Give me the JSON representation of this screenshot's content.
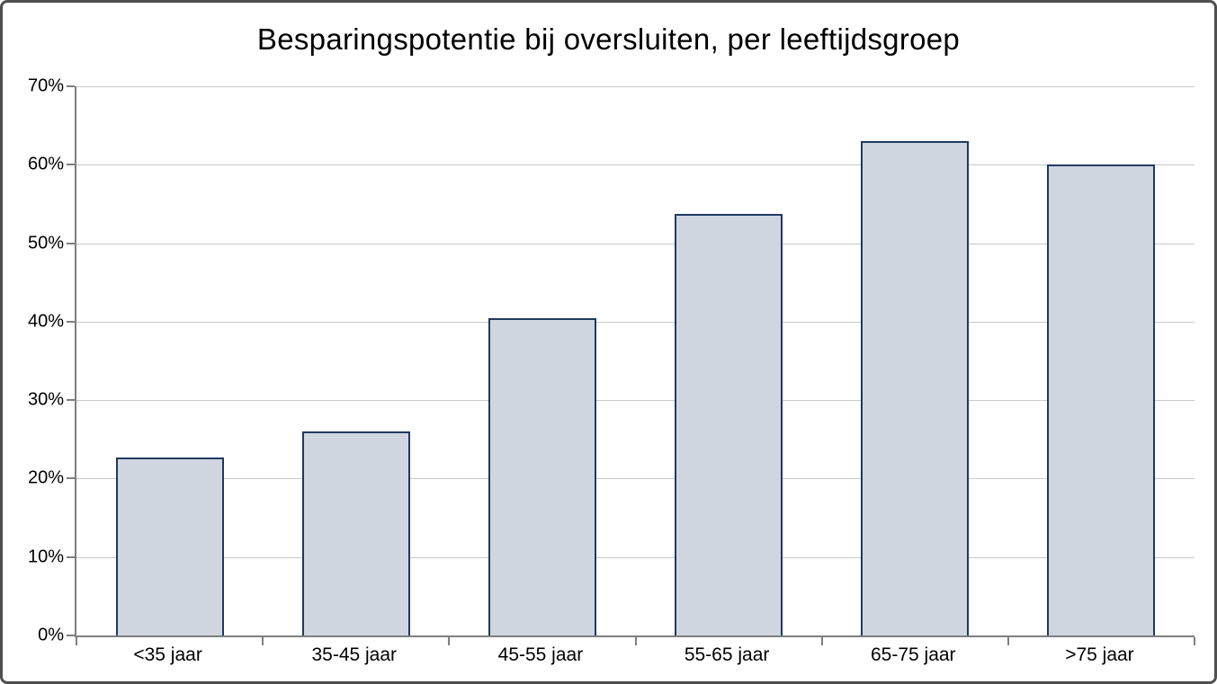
{
  "chart_data": {
    "type": "bar",
    "title": "Besparingspotentie bij oversluiten, per leeftijdsgroep",
    "categories": [
      "<35 jaar",
      "35-45 jaar",
      "45-55 jaar",
      "55-65 jaar",
      "65-75 jaar",
      ">75 jaar"
    ],
    "values": [
      22.7,
      26,
      40.5,
      53.7,
      63,
      60
    ],
    "xlabel": "",
    "ylabel": "",
    "ylim": [
      0,
      70
    ],
    "ytick_step": 10,
    "ytick_labels": [
      "0%",
      "10%",
      "20%",
      "30%",
      "40%",
      "50%",
      "60%",
      "70%"
    ],
    "grid": true,
    "legend": false,
    "colors": {
      "bar_fill": "#cfd6e0",
      "bar_border": "#1f3a5f",
      "gridline": "#c9c9c9",
      "axis": "#7f7f7f",
      "title_text": "#000000",
      "outer_border": "#4f4f4f",
      "background": "#ffffff"
    }
  }
}
